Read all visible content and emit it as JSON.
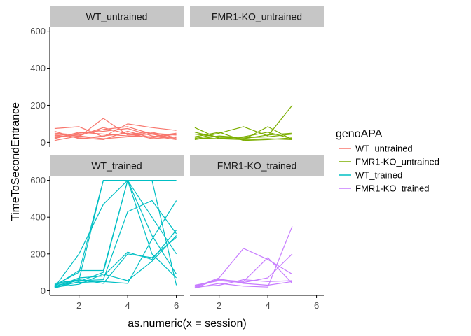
{
  "chart_data": {
    "type": "line",
    "title": "",
    "xlabel": "as.numeric(x = session)",
    "ylabel": "TimeToSecondEntrance",
    "xlim": [
      0.8,
      6.3
    ],
    "ylim": [
      -25,
      625
    ],
    "x_ticks": [
      2,
      4,
      6
    ],
    "y_ticks": [
      0,
      200,
      400,
      600
    ],
    "grid": false,
    "legend": {
      "title": "genoAPA",
      "placement": "right",
      "entries": [
        "WT_untrained",
        "FMR1-KO_untrained",
        "WT_trained",
        "FMR1-KO_trained"
      ]
    },
    "colors": {
      "WT_untrained": "#F8766D",
      "FMR1-KO_untrained": "#7CAE00",
      "WT_trained": "#00BFC4",
      "FMR1-KO_trained": "#C77CFF",
      "strip_background": "#C6C6C6",
      "axis": "#000000"
    },
    "panels": [
      {
        "strip": "WT_untrained",
        "group": "WT_untrained",
        "x_axis": false,
        "y_axis": true,
        "lines": [
          {
            "x": [
              1,
              2,
              3,
              4,
              5,
              6
            ],
            "y": [
              75,
              85,
              30,
              100,
              80,
              65
            ]
          },
          {
            "x": [
              1,
              2,
              3,
              4,
              5,
              6
            ],
            "y": [
              35,
              30,
              130,
              40,
              45,
              20
            ]
          },
          {
            "x": [
              1,
              2,
              3,
              4,
              5,
              6
            ],
            "y": [
              50,
              40,
              70,
              85,
              45,
              40
            ]
          },
          {
            "x": [
              1,
              2,
              3,
              4,
              5,
              6
            ],
            "y": [
              25,
              50,
              60,
              75,
              35,
              15
            ]
          },
          {
            "x": [
              1,
              2,
              3,
              4,
              5,
              6
            ],
            "y": [
              10,
              35,
              20,
              30,
              50,
              40
            ]
          },
          {
            "x": [
              1,
              2,
              3,
              4,
              5,
              6
            ],
            "y": [
              40,
              25,
              15,
              60,
              25,
              45
            ]
          },
          {
            "x": [
              1,
              2,
              3,
              4,
              5,
              6
            ],
            "y": [
              20,
              55,
              45,
              35,
              30,
              50
            ]
          },
          {
            "x": [
              1,
              2,
              3,
              4,
              5,
              6
            ],
            "y": [
              60,
              20,
              35,
              50,
              20,
              30
            ]
          },
          {
            "x": [
              1,
              2,
              3,
              4,
              5,
              6
            ],
            "y": [
              45,
              35,
              80,
              45,
              55,
              25
            ]
          }
        ]
      },
      {
        "strip": "FMR1-KO_untrained",
        "group": "FMR1-KO_untrained",
        "x_axis": false,
        "y_axis": false,
        "lines": [
          {
            "x": [
              1,
              2,
              3,
              4,
              5
            ],
            "y": [
              80,
              20,
              15,
              85,
              15
            ]
          },
          {
            "x": [
              1,
              2,
              3,
              4,
              5
            ],
            "y": [
              20,
              50,
              85,
              35,
              200
            ]
          },
          {
            "x": [
              1,
              2,
              3,
              4,
              5
            ],
            "y": [
              45,
              30,
              20,
              40,
              50
            ]
          },
          {
            "x": [
              1,
              2,
              3,
              4,
              5
            ],
            "y": [
              30,
              55,
              10,
              15,
              25
            ]
          },
          {
            "x": [
              1,
              2,
              3,
              4,
              5
            ],
            "y": [
              25,
              20,
              30,
              55,
              20
            ]
          },
          {
            "x": [
              1,
              2,
              3,
              4,
              5
            ],
            "y": [
              55,
              25,
              15,
              20,
              15
            ]
          },
          {
            "x": [
              1,
              2,
              3,
              4,
              5
            ],
            "y": [
              15,
              35,
              25,
              30,
              45
            ]
          }
        ]
      },
      {
        "strip": "WT_trained",
        "group": "WT_trained",
        "x_axis": true,
        "y_axis": true,
        "lines": [
          {
            "x": [
              1,
              2,
              3,
              4,
              5,
              6
            ],
            "y": [
              40,
              60,
              600,
              600,
              600,
              600
            ]
          },
          {
            "x": [
              1,
              2,
              3,
              4,
              5,
              6
            ],
            "y": [
              30,
              100,
              600,
              600,
              600,
              30
            ]
          },
          {
            "x": [
              1,
              2,
              3,
              4,
              5,
              6
            ],
            "y": [
              20,
              200,
              470,
              600,
              200,
              70
            ]
          },
          {
            "x": [
              1,
              2,
              3,
              4,
              5,
              6
            ],
            "y": [
              15,
              50,
              100,
              600,
              400,
              200
            ]
          },
          {
            "x": [
              1,
              2,
              3,
              4,
              5,
              6
            ],
            "y": [
              25,
              110,
              110,
              600,
              300,
              90
            ]
          },
          {
            "x": [
              1,
              2,
              3,
              4,
              5,
              6
            ],
            "y": [
              35,
              55,
              60,
              430,
              490,
              310
            ]
          },
          {
            "x": [
              1,
              2,
              3,
              4,
              5,
              6
            ],
            "y": [
              20,
              70,
              80,
              210,
              170,
              330
            ]
          },
          {
            "x": [
              1,
              2,
              3,
              4,
              5,
              6
            ],
            "y": [
              30,
              45,
              50,
              40,
              280,
              490
            ]
          },
          {
            "x": [
              1,
              2,
              3,
              4,
              5,
              6
            ],
            "y": [
              15,
              60,
              40,
              200,
              180,
              290
            ]
          },
          {
            "x": [
              1,
              2,
              3,
              4,
              5,
              6
            ],
            "y": [
              20,
              35,
              90,
              55,
              160,
              300
            ]
          }
        ]
      },
      {
        "strip": "FMR1-KO_trained",
        "group": "FMR1-KO_trained",
        "x_axis": true,
        "y_axis": false,
        "lines": [
          {
            "x": [
              1,
              2,
              3,
              4,
              5
            ],
            "y": [
              20,
              70,
              230,
              170,
              90
            ]
          },
          {
            "x": [
              1,
              2,
              3,
              4,
              5
            ],
            "y": [
              25,
              60,
              50,
              180,
              40
            ]
          },
          {
            "x": [
              1,
              2,
              3,
              4,
              5
            ],
            "y": [
              15,
              40,
              25,
              20,
              350
            ]
          },
          {
            "x": [
              1,
              2,
              3,
              4,
              5
            ],
            "y": [
              30,
              55,
              45,
              70,
              200
            ]
          },
          {
            "x": [
              1,
              2,
              3,
              4,
              5
            ],
            "y": [
              20,
              30,
              60,
              50,
              55
            ]
          },
          {
            "x": [
              1,
              2,
              3,
              4,
              5
            ],
            "y": [
              15,
              65,
              40,
              30,
              50
            ]
          }
        ]
      }
    ]
  }
}
